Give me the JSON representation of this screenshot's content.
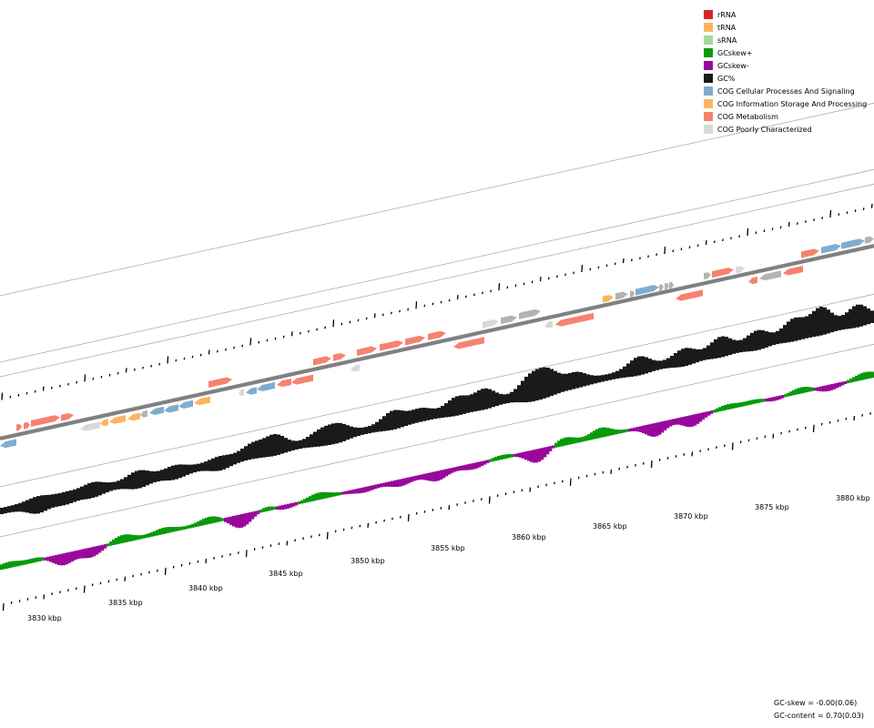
{
  "legend": [
    {
      "label": "rRNA",
      "color": "#d9232a"
    },
    {
      "label": "tRNA",
      "color": "#fdb462"
    },
    {
      "label": "sRNA",
      "color": "#a6d99a"
    },
    {
      "label": "GCskew+",
      "color": "#0a9a0a"
    },
    {
      "label": "GCskew-",
      "color": "#99089b"
    },
    {
      "label": "GC%",
      "color": "#1a1a1a"
    },
    {
      "label": "COG Cellular Processes And Signaling",
      "color": "#7fadd0"
    },
    {
      "label": "COG Information Storage And Processing",
      "color": "#fdb462"
    },
    {
      "label": "COG Metabolism",
      "color": "#f6826f"
    },
    {
      "label": "COG Poorly Characterized",
      "color": "#d9d9d9"
    }
  ],
  "axis": {
    "unit": "kbp",
    "labels": [
      "3830 kbp",
      "3835 kbp",
      "3840 kbp",
      "3845 kbp",
      "3850 kbp",
      "3855 kbp",
      "3860 kbp",
      "3865 kbp",
      "3870 kbp",
      "3875 kbp",
      "3880 kbp"
    ]
  },
  "stats": {
    "gc_skew": "GC-skew = -0.00(0.06)",
    "gc_content": "GC-content = 0.70(0.03)"
  },
  "colors": {
    "cds_other": "#b3b3b3",
    "backbone": "#808080",
    "ring_line": "#aaaaaa"
  }
}
